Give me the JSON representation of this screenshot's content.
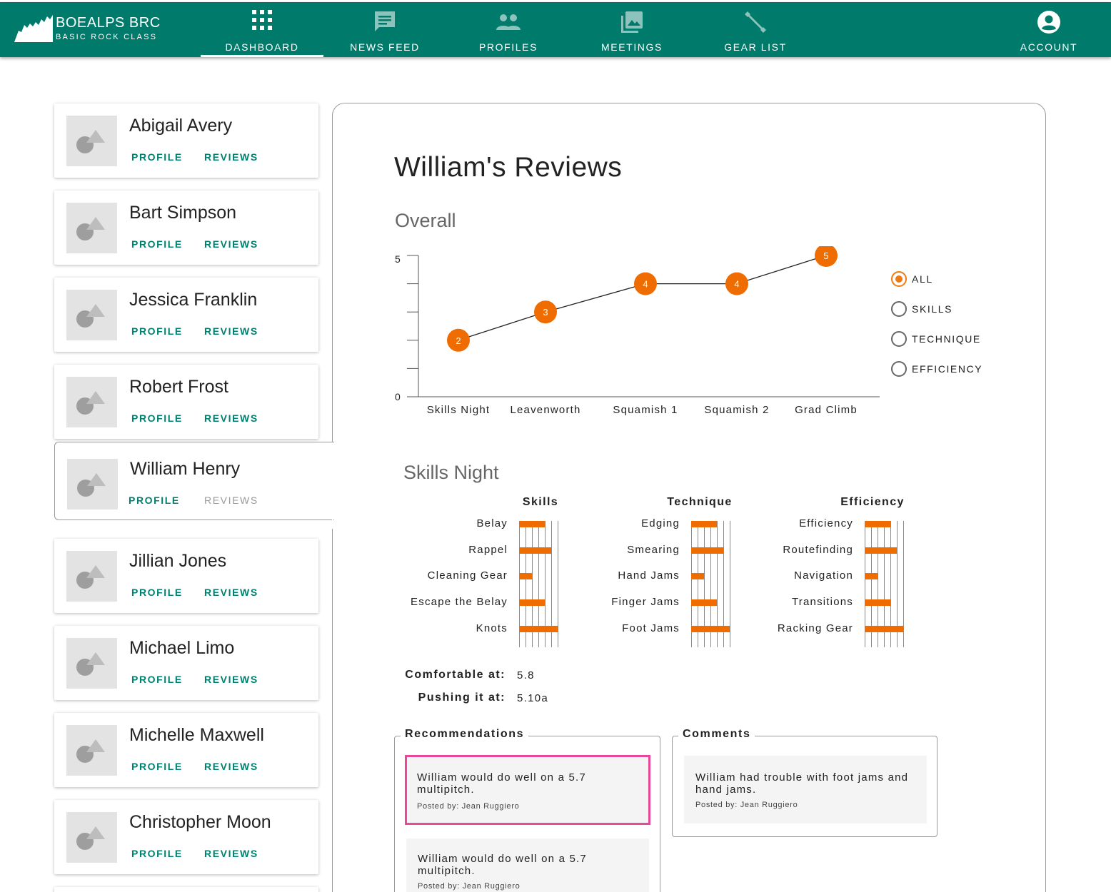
{
  "brand": {
    "title": "BOEALPS BRC",
    "subtitle": "BASIC ROCK CLASS"
  },
  "nav": {
    "dashboard": "DASHBOARD",
    "news_feed": "NEWS FEED",
    "profiles": "PROFILES",
    "meetings": "MEETINGS",
    "gear_list": "GEAR LIST",
    "account": "ACCOUNT",
    "active": "DASHBOARD"
  },
  "students": [
    {
      "name": "Abigail Avery",
      "profile": "PROFILE",
      "reviews": "REVIEWS"
    },
    {
      "name": "Bart Simpson",
      "profile": "PROFILE",
      "reviews": "REVIEWS"
    },
    {
      "name": "Jessica Franklin",
      "profile": "PROFILE",
      "reviews": "REVIEWS"
    },
    {
      "name": "Robert Frost",
      "profile": "PROFILE",
      "reviews": "REVIEWS"
    },
    {
      "name": "William Henry",
      "profile": "PROFILE",
      "reviews": "REVIEWS",
      "selected": true
    },
    {
      "name": "Jillian Jones",
      "profile": "PROFILE",
      "reviews": "REVIEWS"
    },
    {
      "name": "Michael Limo",
      "profile": "PROFILE",
      "reviews": "REVIEWS"
    },
    {
      "name": "Michelle Maxwell",
      "profile": "PROFILE",
      "reviews": "REVIEWS"
    },
    {
      "name": "Christopher Moon",
      "profile": "PROFILE",
      "reviews": "REVIEWS"
    }
  ],
  "review": {
    "title": "William's Reviews",
    "overall_heading": "Overall",
    "session_heading": "Skills Night",
    "filters": [
      {
        "label": "ALL",
        "selected": true
      },
      {
        "label": "SKILLS",
        "selected": false
      },
      {
        "label": "TECHNIQUE",
        "selected": false
      },
      {
        "label": "EFFICIENCY",
        "selected": false
      }
    ],
    "grades": {
      "comfortable_label": "Comfortable at:",
      "comfortable_value": "5.8",
      "pushing_label": "Pushing it at:",
      "pushing_value": "5.10a"
    },
    "recommendations": {
      "legend": "Recommendations",
      "items": [
        {
          "text": "William would do well on a 5.7 multipitch.",
          "posted_by": "Posted by: Jean Ruggiero"
        },
        {
          "text": "William would do well on a 5.7 multipitch.",
          "posted_by": "Posted by: Jean Ruggiero"
        }
      ]
    },
    "comments": {
      "legend": "Comments",
      "items": [
        {
          "text": "William had trouble with foot jams and hand jams.",
          "posted_by": "Posted by: Jean Ruggiero"
        }
      ]
    }
  },
  "chart_data": [
    {
      "type": "line",
      "categories": [
        "Skills Night",
        "Leavenworth",
        "Squamish 1",
        "Squamish 2",
        "Grad Climb"
      ],
      "values": [
        2,
        3,
        4,
        4,
        5
      ],
      "data_labels": [
        "2",
        "3",
        "4",
        "4",
        "5"
      ],
      "ylim": [
        0,
        5
      ],
      "yticks": [
        "0",
        "5"
      ],
      "marker_color": "#ef6c00",
      "line_color": "#222222"
    },
    {
      "type": "bar",
      "title": "Skills",
      "orientation": "horizontal",
      "categories": [
        "Belay",
        "Rappel",
        "Cleaning Gear",
        "Escape the Belay",
        "Knots"
      ],
      "values": [
        4,
        5,
        2,
        4,
        6
      ],
      "xlim": [
        0,
        6
      ],
      "color": "#ef6c00"
    },
    {
      "type": "bar",
      "title": "Technique",
      "orientation": "horizontal",
      "categories": [
        "Edging",
        "Smearing",
        "Hand Jams",
        "Finger Jams",
        "Foot Jams"
      ],
      "values": [
        4,
        5,
        2,
        4,
        6
      ],
      "xlim": [
        0,
        6
      ],
      "color": "#ef6c00"
    },
    {
      "type": "bar",
      "title": "Efficiency",
      "orientation": "horizontal",
      "categories": [
        "Efficiency",
        "Routefinding",
        "Navigation",
        "Transitions",
        "Racking Gear"
      ],
      "values": [
        4,
        5,
        2,
        4,
        6
      ],
      "xlim": [
        0,
        6
      ],
      "color": "#ef6c00"
    }
  ]
}
